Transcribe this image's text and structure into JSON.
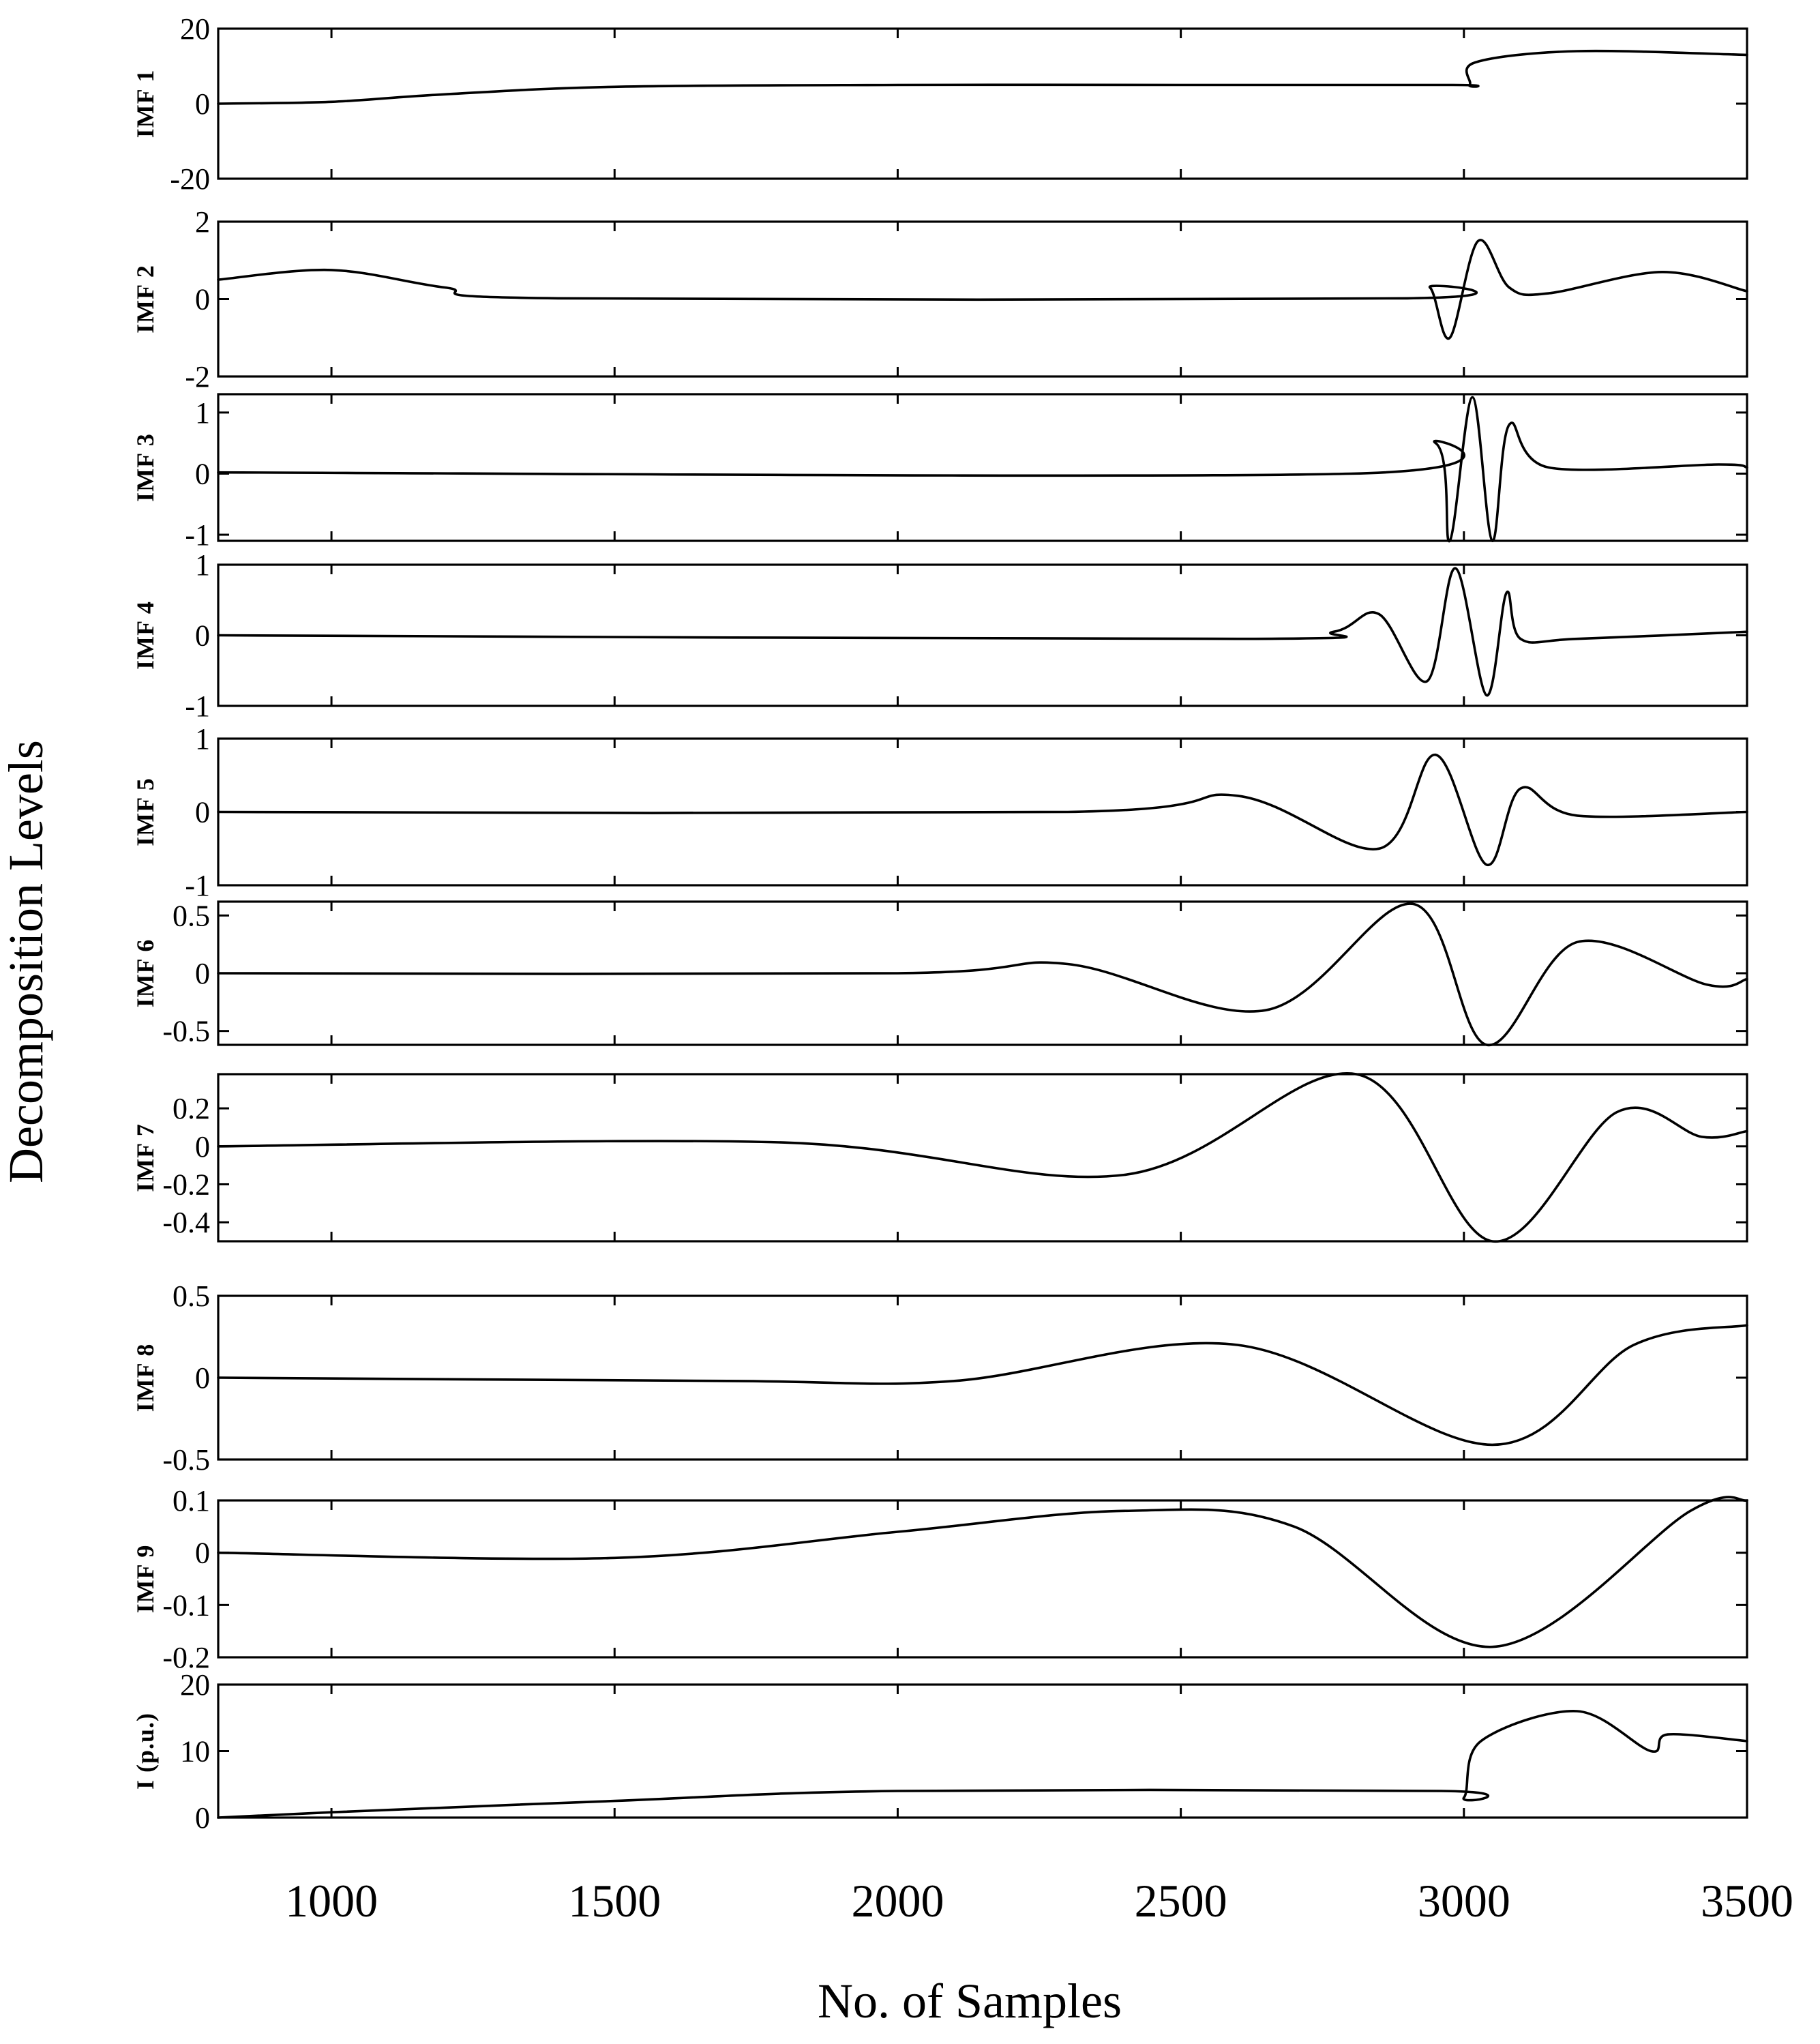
{
  "chart_data": {
    "type": "line",
    "title": "",
    "xlabel": "No. of Samples",
    "ylabel": "Decomposition Levels",
    "xlim": [
      800,
      3500
    ],
    "xticks": [
      "1000",
      "1500",
      "2000",
      "2500",
      "3000",
      "3500"
    ],
    "panels": [
      {
        "name": "IMF 1",
        "ylim": [
          -20,
          20
        ],
        "yticks": [
          "20",
          "0",
          "-20"
        ],
        "series": [
          {
            "name": "IMF 1",
            "x": [
              800,
              1000,
              1200,
              1500,
              2000,
              2500,
              2980,
              3010,
              3020,
              3200,
              3500
            ],
            "values": [
              0,
              0.5,
              2.5,
              4.5,
              5,
              5,
              5,
              5,
              11,
              14,
              13
            ]
          }
        ]
      },
      {
        "name": "IMF 2",
        "ylim": [
          -2,
          2
        ],
        "yticks": [
          "2",
          "0",
          "-2"
        ],
        "series": [
          {
            "name": "IMF 2",
            "x": [
              800,
              1000,
              1200,
              1400,
              2900,
              2940,
              2975,
              3025,
              3080,
              3150,
              3350,
              3500
            ],
            "values": [
              0.5,
              0.75,
              0.3,
              0.02,
              0.02,
              0.3,
              -1.0,
              1.5,
              0.3,
              0.15,
              0.7,
              0.2
            ]
          }
        ]
      },
      {
        "name": "IMF 3",
        "ylim": [
          -1.1,
          1.3
        ],
        "yticks": [
          "1",
          "0",
          "-1"
        ],
        "series": [
          {
            "name": "IMF 3",
            "x": [
              800,
              2800,
              2950,
              2975,
              3015,
              3050,
              3080,
              3150,
              3450,
              3500
            ],
            "values": [
              0.02,
              0,
              0.5,
              -1.1,
              1.25,
              -1.1,
              0.8,
              0.1,
              0.15,
              0.1
            ]
          }
        ]
      },
      {
        "name": "IMF 4",
        "ylim": [
          -1,
          1
        ],
        "yticks": [
          "1",
          "0",
          "-1"
        ],
        "series": [
          {
            "name": "IMF 4",
            "x": [
              800,
              2600,
              2770,
              2850,
              2935,
              2985,
              3040,
              3075,
              3100,
              3200,
              3500
            ],
            "values": [
              0,
              -0.05,
              0.05,
              0.3,
              -0.65,
              0.95,
              -0.85,
              0.6,
              -0.05,
              -0.05,
              0.05
            ]
          }
        ]
      },
      {
        "name": "IMF 5",
        "ylim": [
          -1,
          1
        ],
        "yticks": [
          "1",
          "0",
          "-1"
        ],
        "series": [
          {
            "name": "IMF 5",
            "x": [
              800,
              2300,
              2600,
              2850,
              2950,
              3040,
              3100,
              3200,
              3500
            ],
            "values": [
              0,
              0,
              0.22,
              -0.5,
              0.78,
              -0.72,
              0.32,
              -0.05,
              0
            ]
          }
        ]
      },
      {
        "name": "IMF 6",
        "ylim": [
          -0.62,
          0.62
        ],
        "yticks": [
          "0.5",
          "0",
          "-0.5"
        ],
        "series": [
          {
            "name": "IMF 6",
            "x": [
              800,
              2000,
              2300,
              2650,
              2910,
              3040,
              3200,
              3430,
              3500
            ],
            "values": [
              0,
              0,
              0.08,
              -0.32,
              0.6,
              -0.62,
              0.27,
              -0.1,
              -0.05
            ]
          }
        ]
      },
      {
        "name": "IMF 7",
        "ylim": [
          -0.5,
          0.38
        ],
        "yticks": [
          "0.2",
          "0",
          "-0.2",
          "-0.4"
        ],
        "series": [
          {
            "name": "IMF 7",
            "x": [
              800,
              1800,
              2400,
              2810,
              3050,
              3270,
              3420,
              3500
            ],
            "values": [
              0,
              0.02,
              -0.15,
              0.38,
              -0.5,
              0.18,
              0.05,
              0.08
            ]
          }
        ]
      },
      {
        "name": "IMF 8",
        "ylim": [
          -0.5,
          0.5
        ],
        "yticks": [
          "0.5",
          "0",
          "-0.5"
        ],
        "series": [
          {
            "name": "IMF 8",
            "x": [
              800,
              1700,
              2100,
              2600,
              3050,
              3300,
              3500
            ],
            "values": [
              0,
              -0.02,
              -0.02,
              0.2,
              -0.41,
              0.2,
              0.32
            ]
          }
        ]
      },
      {
        "name": "IMF 9",
        "ylim": [
          -0.2,
          0.1
        ],
        "yticks": [
          "0.1",
          "0",
          "-0.1",
          "-0.2"
        ],
        "series": [
          {
            "name": "IMF 9",
            "x": [
              800,
              1500,
              2000,
              2400,
              2700,
              3050,
              3400,
              3500
            ],
            "values": [
              0,
              -0.01,
              0.04,
              0.08,
              0.05,
              -0.18,
              0.08,
              0.1
            ]
          }
        ]
      },
      {
        "name": "I (p.u.)",
        "ylim": [
          0,
          20
        ],
        "yticks": [
          "20",
          "10",
          "0"
        ],
        "series": [
          {
            "name": "I (p.u.)",
            "x": [
              800,
              1000,
              1500,
              2000,
              2960,
              3000,
              3030,
              3200,
              3330,
              3360,
              3500
            ],
            "values": [
              0,
              0.8,
              2.5,
              4,
              4,
              3,
              11.5,
              16,
              10,
              12.5,
              11.5
            ]
          }
        ]
      }
    ]
  }
}
